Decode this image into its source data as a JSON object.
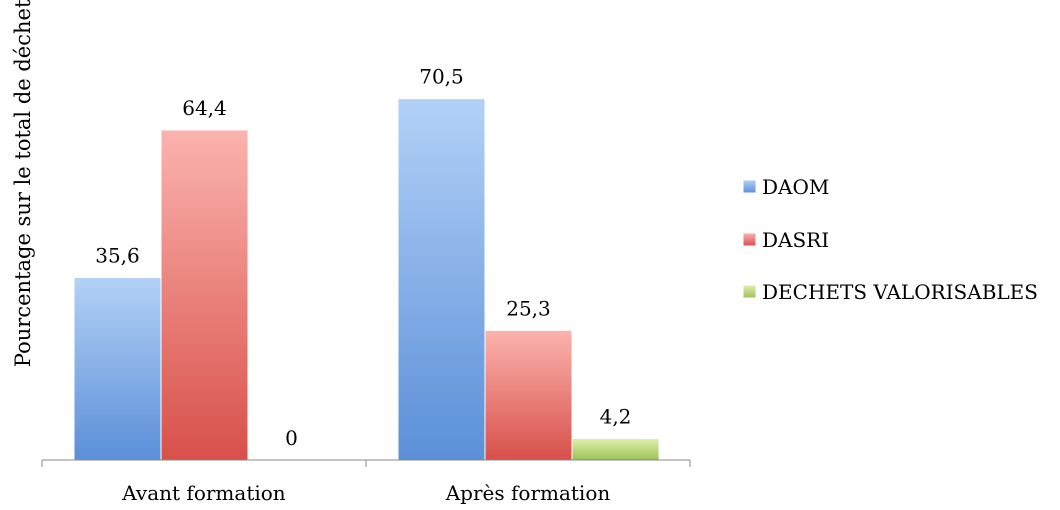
{
  "chart_data": {
    "type": "bar",
    "title": "",
    "xlabel": "",
    "ylabel": "Pourcentage sur le total de déchets",
    "categories": [
      "Avant formation",
      "Après formation"
    ],
    "series": [
      {
        "name": "DAOM",
        "values": [
          35.6,
          70.5
        ],
        "labels": [
          "35,6",
          "70,5"
        ],
        "color": "#8fb8ee"
      },
      {
        "name": "DASRI",
        "values": [
          64.4,
          25.3
        ],
        "labels": [
          "64,4",
          "25,3"
        ],
        "color": "#ee8580"
      },
      {
        "name": "DECHETS VALORISABLES",
        "values": [
          0,
          4.2
        ],
        "labels": [
          "0",
          "4,2"
        ],
        "color": "#c6de88"
      }
    ],
    "ylim": [
      0,
      80
    ],
    "grid": false,
    "legend": "right"
  }
}
